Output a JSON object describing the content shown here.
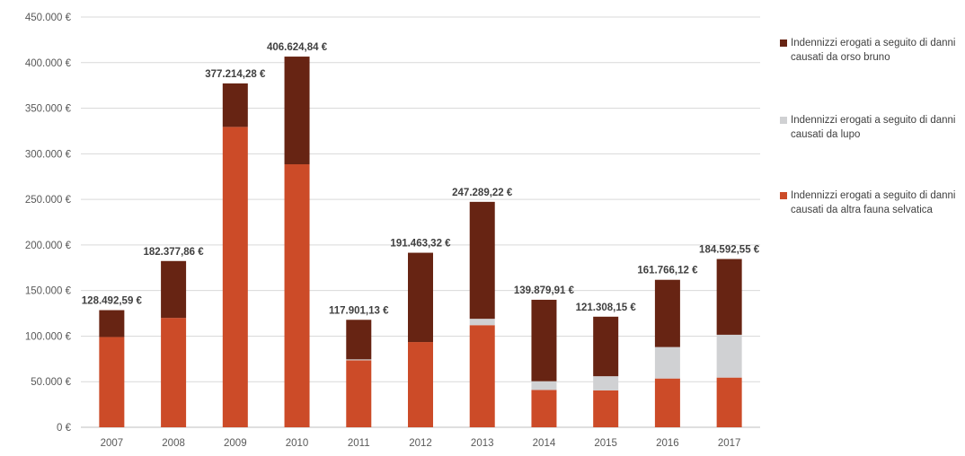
{
  "chart_data": {
    "type": "bar",
    "stacked": true,
    "categories": [
      "2007",
      "2008",
      "2009",
      "2010",
      "2011",
      "2012",
      "2013",
      "2014",
      "2015",
      "2016",
      "2017"
    ],
    "series": [
      {
        "name": "Indennizzi erogati a seguito di danni causati da altra fauna selvatica",
        "color": "#cc4b28",
        "values": [
          99000,
          120000,
          329500,
          288500,
          73500,
          93500,
          112000,
          41000,
          40500,
          53500,
          54500
        ]
      },
      {
        "name": "Indennizzi erogati a seguito di danni causati da lupo",
        "color": "#d0d1d3",
        "values": [
          0,
          0,
          0,
          0,
          1000,
          0,
          7000,
          9500,
          15500,
          34500,
          47000
        ]
      },
      {
        "name": "Indennizzi erogati a seguito di danni causati da orso bruno",
        "color": "#672413",
        "values": [
          29492.59,
          62377.86,
          47714.28,
          118124.84,
          43401.13,
          97963.32,
          128289.22,
          89379.91,
          65308.15,
          73766.12,
          83092.55
        ]
      }
    ],
    "totals": [
      128492.59,
      182377.86,
      377214.28,
      406624.84,
      117901.13,
      191463.32,
      247289.22,
      139879.91,
      121308.15,
      161766.12,
      184592.55
    ],
    "total_labels": [
      "128.492,59 €",
      "182.377,86 €",
      "377.214,28 €",
      "406.624,84 €",
      "117.901,13 €",
      "191.463,32 €",
      "247.289,22 €",
      "139.879,91 €",
      "121.308,15 €",
      "161.766,12 €",
      "184.592,55 €"
    ],
    "y_ticks": [
      0,
      50000,
      100000,
      150000,
      200000,
      250000,
      300000,
      350000,
      400000,
      450000
    ],
    "y_tick_labels": [
      "0 €",
      "50.000 €",
      "100.000 €",
      "150.000 €",
      "200.000 €",
      "250.000 €",
      "300.000 €",
      "350.000 €",
      "400.000 €",
      "450.000 €"
    ],
    "ylim": [
      0,
      450000
    ],
    "grid": true,
    "legend_position": "right",
    "title": "",
    "xlabel": "",
    "ylabel": ""
  },
  "legend": [
    {
      "label": "Indennizzi erogati a seguito di danni causati da orso bruno",
      "color": "#672413"
    },
    {
      "label": "Indennizzi erogati a seguito di danni causati da lupo",
      "color": "#d0d1d3"
    },
    {
      "label": "Indennizzi erogati a seguito di danni causati da altra fauna selvatica",
      "color": "#cc4b28"
    }
  ]
}
